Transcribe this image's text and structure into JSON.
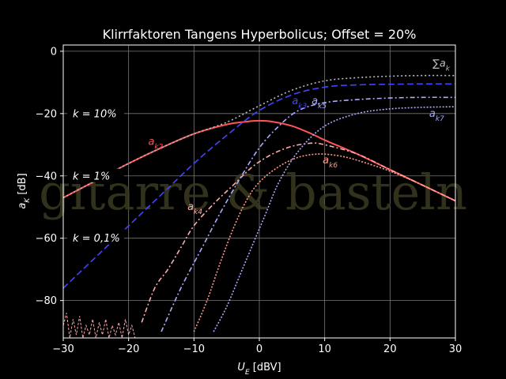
{
  "chart_data": {
    "type": "line",
    "title": "Klirrfaktoren Tangens Hyperbolicus; Offset = 20%",
    "xlabel_main": "U",
    "xlabel_sub": "E",
    "xlabel_unit": " [dBV]",
    "ylabel_main": "a",
    "ylabel_sub": "K",
    "ylabel_unit": " [dB]",
    "xlim": [
      -30,
      30
    ],
    "ylim": [
      -92,
      2
    ],
    "xticks": [
      -30,
      -20,
      -10,
      0,
      10,
      20,
      30
    ],
    "yticks": [
      0,
      -20,
      -40,
      -60,
      -80
    ],
    "grid": true,
    "watermark": "gitarre & basteln",
    "colors": {
      "k2": "#ff5555",
      "k3": "#4444ff",
      "k4": "#ffaaaa",
      "k5": "#aaaaff",
      "k6": "#ff9988",
      "k7": "#aaaaff",
      "sum": "#bbbbbb"
    },
    "series": [
      {
        "name": "a_k2",
        "color": "#ff5555",
        "dash": "",
        "x": [
          -30,
          -25,
          -20,
          -15,
          -10,
          -5,
          -2,
          0,
          2,
          5,
          8,
          10,
          15,
          20,
          25,
          30
        ],
        "y": [
          -47,
          -41.5,
          -36,
          -31,
          -26.5,
          -23.5,
          -22.6,
          -22.3,
          -22.6,
          -24,
          -26.5,
          -28.5,
          -33,
          -38,
          -43,
          -48
        ]
      },
      {
        "name": "a_k3",
        "color": "#4444ff",
        "dash": "8,4",
        "x": [
          -30,
          -25,
          -20,
          -15,
          -10,
          -5,
          0,
          5,
          10,
          15,
          20,
          25,
          30
        ],
        "y": [
          -76,
          -66,
          -56,
          -46,
          -36,
          -27,
          -19,
          -14,
          -11.5,
          -10.8,
          -10.6,
          -10.5,
          -10.5
        ]
      },
      {
        "name": "a_k4",
        "color": "#ffaaaa",
        "dash": "6,3,2,3",
        "x": [
          -18,
          -16,
          -14,
          -12,
          -10,
          -7,
          -4,
          -1,
          2,
          5,
          8,
          10,
          15,
          20,
          25,
          30
        ],
        "y": [
          -87,
          -76,
          -70,
          -63,
          -56,
          -49,
          -43,
          -37,
          -33,
          -30.5,
          -29.5,
          -30,
          -33,
          -38,
          -43,
          -48
        ]
      },
      {
        "name": "a_k5",
        "color": "#aaaaff",
        "dash": "6,3,2,3",
        "x": [
          -15,
          -12,
          -9,
          -6,
          -3,
          0,
          3,
          6,
          10,
          15,
          20,
          25,
          30
        ],
        "y": [
          -90,
          -76,
          -64,
          -52,
          -41,
          -31,
          -24,
          -19,
          -16.5,
          -15.5,
          -15,
          -14.8,
          -14.8
        ]
      },
      {
        "name": "a_k6",
        "color": "#ff9988",
        "dash": "2,2",
        "x": [
          -10,
          -8,
          -6,
          -4,
          -2,
          0,
          3,
          6,
          9,
          12,
          15,
          20,
          25,
          30
        ],
        "y": [
          -90,
          -80,
          -68,
          -57,
          -48,
          -42,
          -37,
          -34,
          -33,
          -33.5,
          -35,
          -38.5,
          -43,
          -48
        ]
      },
      {
        "name": "a_k7",
        "color": "#aaaaff",
        "dash": "2,2",
        "x": [
          -7,
          -5,
          -3,
          -1,
          1,
          3,
          6,
          10,
          15,
          20,
          25,
          30
        ],
        "y": [
          -90,
          -82,
          -72,
          -62,
          -52,
          -42,
          -32,
          -24,
          -20,
          -18.5,
          -18,
          -17.8
        ]
      },
      {
        "name": "sum_a_k",
        "color": "#bbbbbb",
        "dash": "2,3",
        "x": [
          -30,
          -25,
          -20,
          -15,
          -10,
          -5,
          0,
          5,
          10,
          15,
          20,
          25,
          30
        ],
        "y": [
          -47,
          -41.5,
          -36,
          -31,
          -26.5,
          -22.8,
          -17.5,
          -12.5,
          -9.5,
          -8.5,
          -8,
          -7.8,
          -7.8
        ]
      }
    ],
    "ripple": {
      "color": "#ffaaaa",
      "x": [
        -30,
        -29.5,
        -29,
        -28.5,
        -28,
        -27.5,
        -27,
        -26.5,
        -26,
        -25.5,
        -25,
        -24.5,
        -24,
        -23.5,
        -23,
        -22.5,
        -22,
        -21.5,
        -21,
        -20.5,
        -20,
        -19.5,
        -19
      ],
      "y": [
        -88,
        -84,
        -92,
        -86,
        -91,
        -85,
        -92,
        -88,
        -91,
        -86,
        -92,
        -87,
        -91,
        -86,
        -92,
        -88,
        -91,
        -87,
        -92,
        -86,
        -91,
        -88,
        -92
      ]
    },
    "annotations": [
      {
        "main": "a",
        "sub": "k2",
        "color": "#ff5555",
        "x": -17,
        "y": -30
      },
      {
        "main": "a",
        "sub": "k3",
        "color": "#4444ff",
        "x": 5,
        "y": -17
      },
      {
        "main": "a",
        "sub": "k4",
        "color": "#ffaaaa",
        "x": -11,
        "y": -51
      },
      {
        "main": "a",
        "sub": "k5",
        "color": "#aaaaff",
        "x": 8,
        "y": -17
      },
      {
        "main": "a",
        "sub": "k6",
        "color": "#ff9988",
        "x": 9.7,
        "y": -36
      },
      {
        "main": "a",
        "sub": "k7",
        "color": "#aaaaff",
        "x": 26,
        "y": -21
      },
      {
        "main": "∑a",
        "sub": "k",
        "color": "#bbbbbb",
        "x": 26.5,
        "y": -5
      }
    ],
    "k_labels": [
      {
        "text": "k = 10%",
        "y": -20
      },
      {
        "text": "k = 1%",
        "y": -40
      },
      {
        "text": "k = 0,1%",
        "y": -60
      }
    ]
  }
}
